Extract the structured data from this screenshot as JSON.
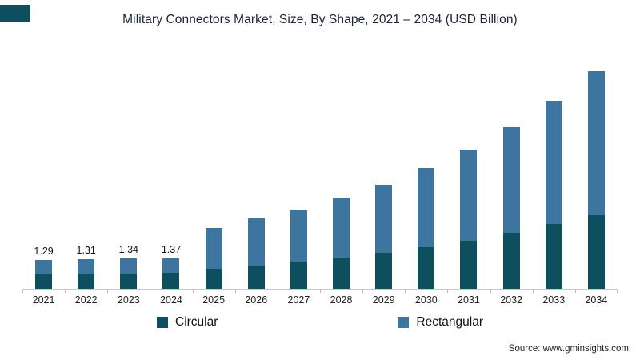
{
  "header": {
    "title": "Military Connectors Market, Size, By Shape, 2021 – 2034 (USD Billion)"
  },
  "footer": {
    "source": "Source: www.gminsights.com"
  },
  "legend": {
    "items": [
      {
        "label": "Circular"
      },
      {
        "label": "Rectangular"
      }
    ]
  },
  "colors": {
    "circular": "#0d4f5f",
    "rectangular": "#3d759e",
    "accent": "#0d4f5f",
    "axis": "#c9c9c9",
    "title": "#1b2435"
  },
  "chart_data": {
    "type": "bar",
    "stacked": true,
    "title": "Military Connectors Market, Size, By Shape, 2021 – 2034 (USD Billion)",
    "categories": [
      "2021",
      "2022",
      "2023",
      "2024",
      "2025",
      "2026",
      "2027",
      "2028",
      "2029",
      "2030",
      "2031",
      "2032",
      "2033",
      "2034"
    ],
    "series": [
      {
        "name": "Circular",
        "color": "#0d4f5f",
        "values": [
          0.65,
          0.66,
          0.68,
          0.7,
          0.9,
          1.05,
          1.2,
          1.4,
          1.6,
          1.85,
          2.15,
          2.5,
          2.9,
          3.3
        ]
      },
      {
        "name": "Rectangular",
        "color": "#3d759e",
        "values": [
          0.64,
          0.65,
          0.66,
          0.67,
          1.8,
          2.1,
          2.35,
          2.65,
          3.05,
          3.55,
          4.05,
          4.7,
          5.5,
          6.4
        ]
      }
    ],
    "totals": [
      1.29,
      1.31,
      1.34,
      1.37,
      2.7,
      3.15,
      3.55,
      4.05,
      4.65,
      5.4,
      6.2,
      7.2,
      8.4,
      9.7
    ],
    "data_labels": [
      "1.29",
      "1.31",
      "1.34",
      "1.37",
      "",
      "",
      "",
      "",
      "",
      "",
      "",
      "",
      "",
      ""
    ],
    "xlabel": "",
    "ylabel": "",
    "ylim": [
      0,
      10
    ],
    "grid": false,
    "legend_position": "bottom"
  }
}
